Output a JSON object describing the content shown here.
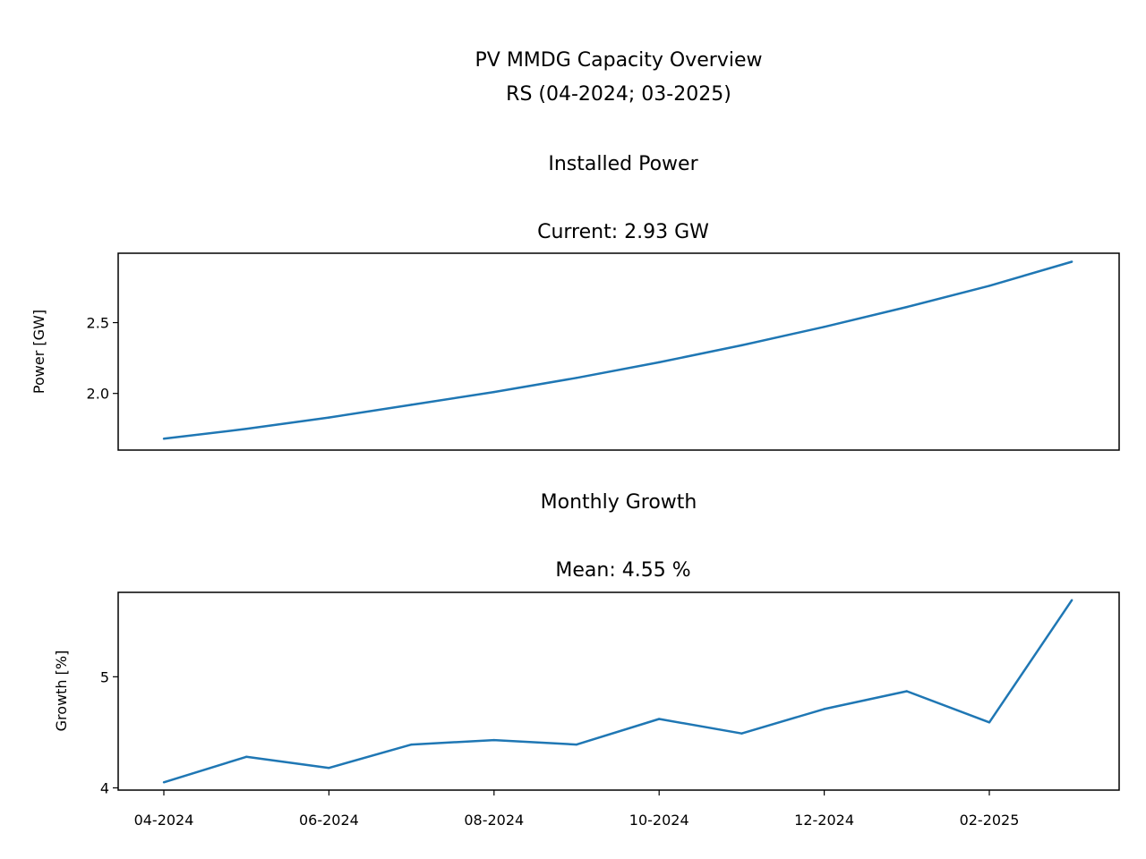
{
  "figure": {
    "title_line1": "PV MMDG Capacity Overview",
    "title_line2": "RS (04-2024; 03-2025)"
  },
  "chart_data": [
    {
      "type": "line",
      "title": "Installed Power",
      "subtitle": "Current: 2.93 GW",
      "xlabel": "",
      "ylabel": "Power [GW]",
      "x": [
        "04-2024",
        "05-2024",
        "06-2024",
        "07-2024",
        "08-2024",
        "09-2024",
        "10-2024",
        "11-2024",
        "12-2024",
        "01-2025",
        "02-2025",
        "03-2025"
      ],
      "series": [
        {
          "values": [
            1.68,
            1.75,
            1.83,
            1.92,
            2.01,
            2.11,
            2.22,
            2.34,
            2.47,
            2.61,
            2.76,
            2.93
          ],
          "color": "#1f77b4"
        }
      ],
      "ylim": [
        1.6,
        2.99
      ],
      "yticks": [
        "2.0",
        "2.5"
      ],
      "ytick_values": [
        2.0,
        2.5
      ],
      "xticks_visible": false,
      "grid": false
    },
    {
      "type": "line",
      "title": "Monthly Growth",
      "subtitle": "Mean: 4.55 %",
      "xlabel": "",
      "ylabel": "Growth [%]",
      "x": [
        "04-2024",
        "05-2024",
        "06-2024",
        "07-2024",
        "08-2024",
        "09-2024",
        "10-2024",
        "11-2024",
        "12-2024",
        "01-2025",
        "02-2025",
        "03-2025"
      ],
      "series": [
        {
          "values": [
            4.05,
            4.28,
            4.18,
            4.39,
            4.43,
            4.39,
            4.62,
            4.49,
            4.71,
            4.87,
            4.59,
            5.69
          ],
          "color": "#1f77b4"
        }
      ],
      "ylim": [
        3.98,
        5.76
      ],
      "yticks": [
        "4",
        "5"
      ],
      "ytick_values": [
        4,
        5
      ],
      "xticks": [
        "04-2024",
        "06-2024",
        "08-2024",
        "10-2024",
        "12-2024",
        "02-2025"
      ],
      "xtick_index": [
        0,
        2,
        4,
        6,
        8,
        10
      ],
      "grid": false
    }
  ]
}
